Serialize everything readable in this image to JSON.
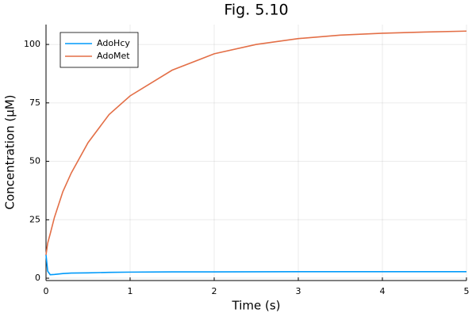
{
  "chart_data": {
    "type": "line",
    "title": "Fig. 5.10",
    "x_label": "Time (s)",
    "y_label": "Concentration (μM)",
    "x": [
      0,
      0.02,
      0.05,
      0.1,
      0.2,
      0.3,
      0.5,
      0.75,
      1,
      1.5,
      2,
      2.5,
      3,
      3.5,
      4,
      4.5,
      5
    ],
    "series": [
      {
        "name": "AdoHcy",
        "color": "#009afa",
        "values": [
          10,
          3,
          1.5,
          1.6,
          2,
          2.2,
          2.3,
          2.5,
          2.6,
          2.7,
          2.7,
          2.75,
          2.8,
          2.8,
          2.8,
          2.8,
          2.8
        ]
      },
      {
        "name": "AdoMet",
        "color": "#e36f47",
        "values": [
          10,
          15,
          19,
          26,
          37,
          45,
          58,
          70,
          78,
          89,
          96,
          100,
          102.5,
          104,
          104.8,
          105.3,
          105.7
        ]
      }
    ],
    "xlim": [
      0,
      5
    ],
    "ylim": [
      -1,
      108.5
    ],
    "xticks": [
      0,
      1,
      2,
      3,
      4,
      5
    ],
    "yticks": [
      0,
      25,
      50,
      75,
      100
    ],
    "grid": true,
    "legend": "top-left"
  }
}
